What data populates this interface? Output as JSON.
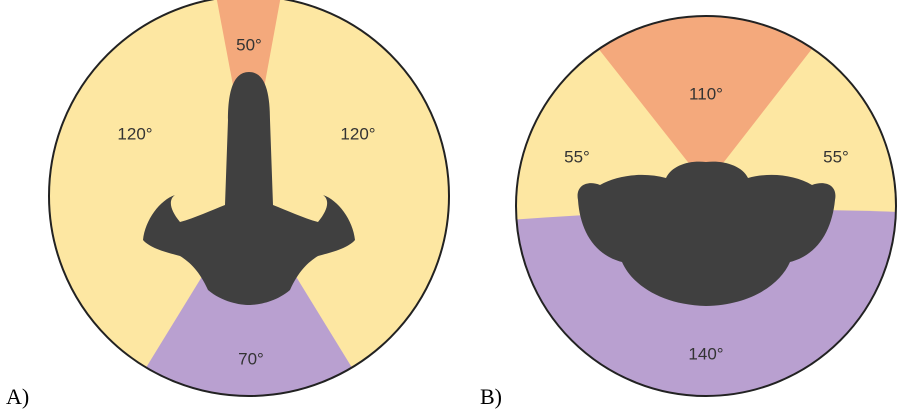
{
  "panels": [
    {
      "label": "A)",
      "angles": [
        "50°",
        "120°",
        "120°",
        "70°"
      ]
    },
    {
      "label": "B)",
      "angles": [
        "110°",
        "55°",
        "55°",
        "140°"
      ]
    }
  ]
}
